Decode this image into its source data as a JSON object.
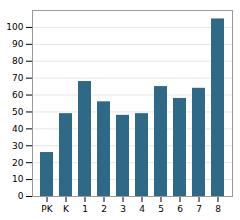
{
  "chart_data": {
    "type": "bar",
    "categories": [
      "PK",
      "K",
      "1",
      "2",
      "3",
      "4",
      "5",
      "6",
      "7",
      "8"
    ],
    "values": [
      26,
      49,
      68,
      56,
      48,
      49,
      65,
      58,
      64,
      105
    ],
    "color": "#2e6a87",
    "ylim": [
      0,
      110
    ],
    "yticks": [
      0,
      10,
      20,
      30,
      40,
      50,
      60,
      70,
      80,
      90,
      100
    ],
    "grid": true
  }
}
